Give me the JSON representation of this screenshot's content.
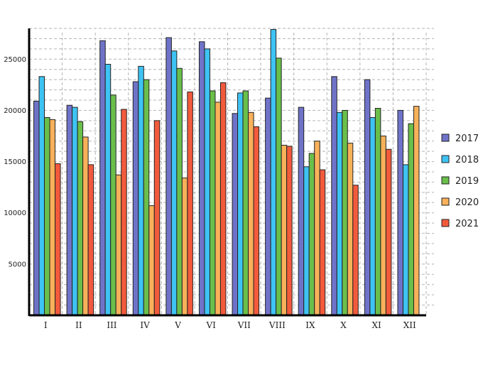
{
  "chart_data": {
    "type": "bar",
    "title": "",
    "xlabel": "",
    "ylabel": "",
    "ylim": [
      0,
      28000
    ],
    "yticks": [
      5000,
      10000,
      15000,
      20000,
      25000
    ],
    "grid": true,
    "legend_position": "right",
    "categories": [
      "I",
      "II",
      "III",
      "IV",
      "V",
      "VI",
      "VII",
      "VIII",
      "IX",
      "X",
      "XI",
      "XII"
    ],
    "series": [
      {
        "name": "2017",
        "color": "#6f73c8",
        "values": [
          20900,
          20500,
          26800,
          22800,
          27100,
          26700,
          19700,
          21200,
          20300,
          23300,
          23000,
          20000
        ]
      },
      {
        "name": "2018",
        "color": "#3ec3f3",
        "values": [
          23300,
          20300,
          24500,
          24300,
          25800,
          26000,
          21700,
          27900,
          14500,
          19800,
          19300,
          14700
        ]
      },
      {
        "name": "2019",
        "color": "#6abf4b",
        "values": [
          19300,
          18900,
          21500,
          23000,
          24100,
          21900,
          21900,
          25100,
          15800,
          20000,
          20200,
          18700
        ]
      },
      {
        "name": "2020",
        "color": "#f8b15a",
        "values": [
          19100,
          17400,
          13700,
          10700,
          13400,
          20800,
          19800,
          16600,
          17000,
          16800,
          17500,
          20400
        ]
      },
      {
        "name": "2021",
        "color": "#f25a3c",
        "values": [
          14800,
          14700,
          20100,
          19000,
          21800,
          22700,
          18400,
          16500,
          14200,
          12700,
          16200,
          null
        ]
      }
    ]
  }
}
